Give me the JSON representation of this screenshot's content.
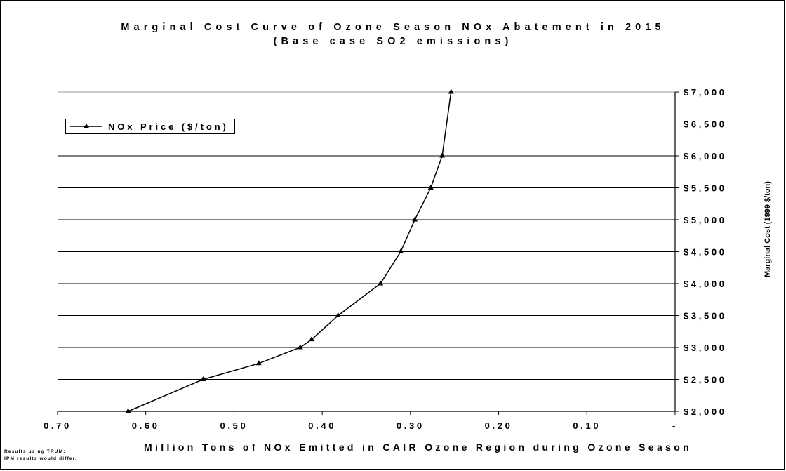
{
  "chart_data": {
    "type": "line",
    "title": "Marginal Cost Curve of Ozone Season NOx Abatement in 2015",
    "subtitle": "(Base case SO2 emissions)",
    "xlabel": "Million Tons of NOx Emitted in CAIR Ozone Region during Ozone Season",
    "ylabel": "Marginal Cost (1999 $/ton)",
    "xlim": [
      0.7,
      0.0
    ],
    "ylim": [
      2000,
      7000
    ],
    "x_reversed": true,
    "x_ticks": [
      "0.70",
      "0.60",
      "0.50",
      "0.40",
      "0.30",
      "0.20",
      "0.10",
      "-"
    ],
    "y_ticks": [
      "$2,000",
      "$2,500",
      "$3,000",
      "$3,500",
      "$4,000",
      "$4,500",
      "$5,000",
      "$5,500",
      "$6,000",
      "$6,500",
      "$7,000"
    ],
    "y_axis_side": "right",
    "grid": "horizontal",
    "legend_position": "top-left",
    "series": [
      {
        "name": "NOx Price ($/ton)",
        "marker": "triangle",
        "x": [
          0.62,
          0.535,
          0.472,
          0.425,
          0.412,
          0.382,
          0.334,
          0.311,
          0.295,
          0.277,
          0.264,
          0.254
        ],
        "y": [
          2000,
          2500,
          2750,
          3000,
          3125,
          3500,
          4000,
          4500,
          5000,
          5500,
          6000,
          7000
        ]
      }
    ]
  },
  "notes": [
    "Results using TRUM;",
    "IPM results would differ."
  ],
  "colors": {
    "line": "#000000",
    "background": "#ffffff"
  }
}
